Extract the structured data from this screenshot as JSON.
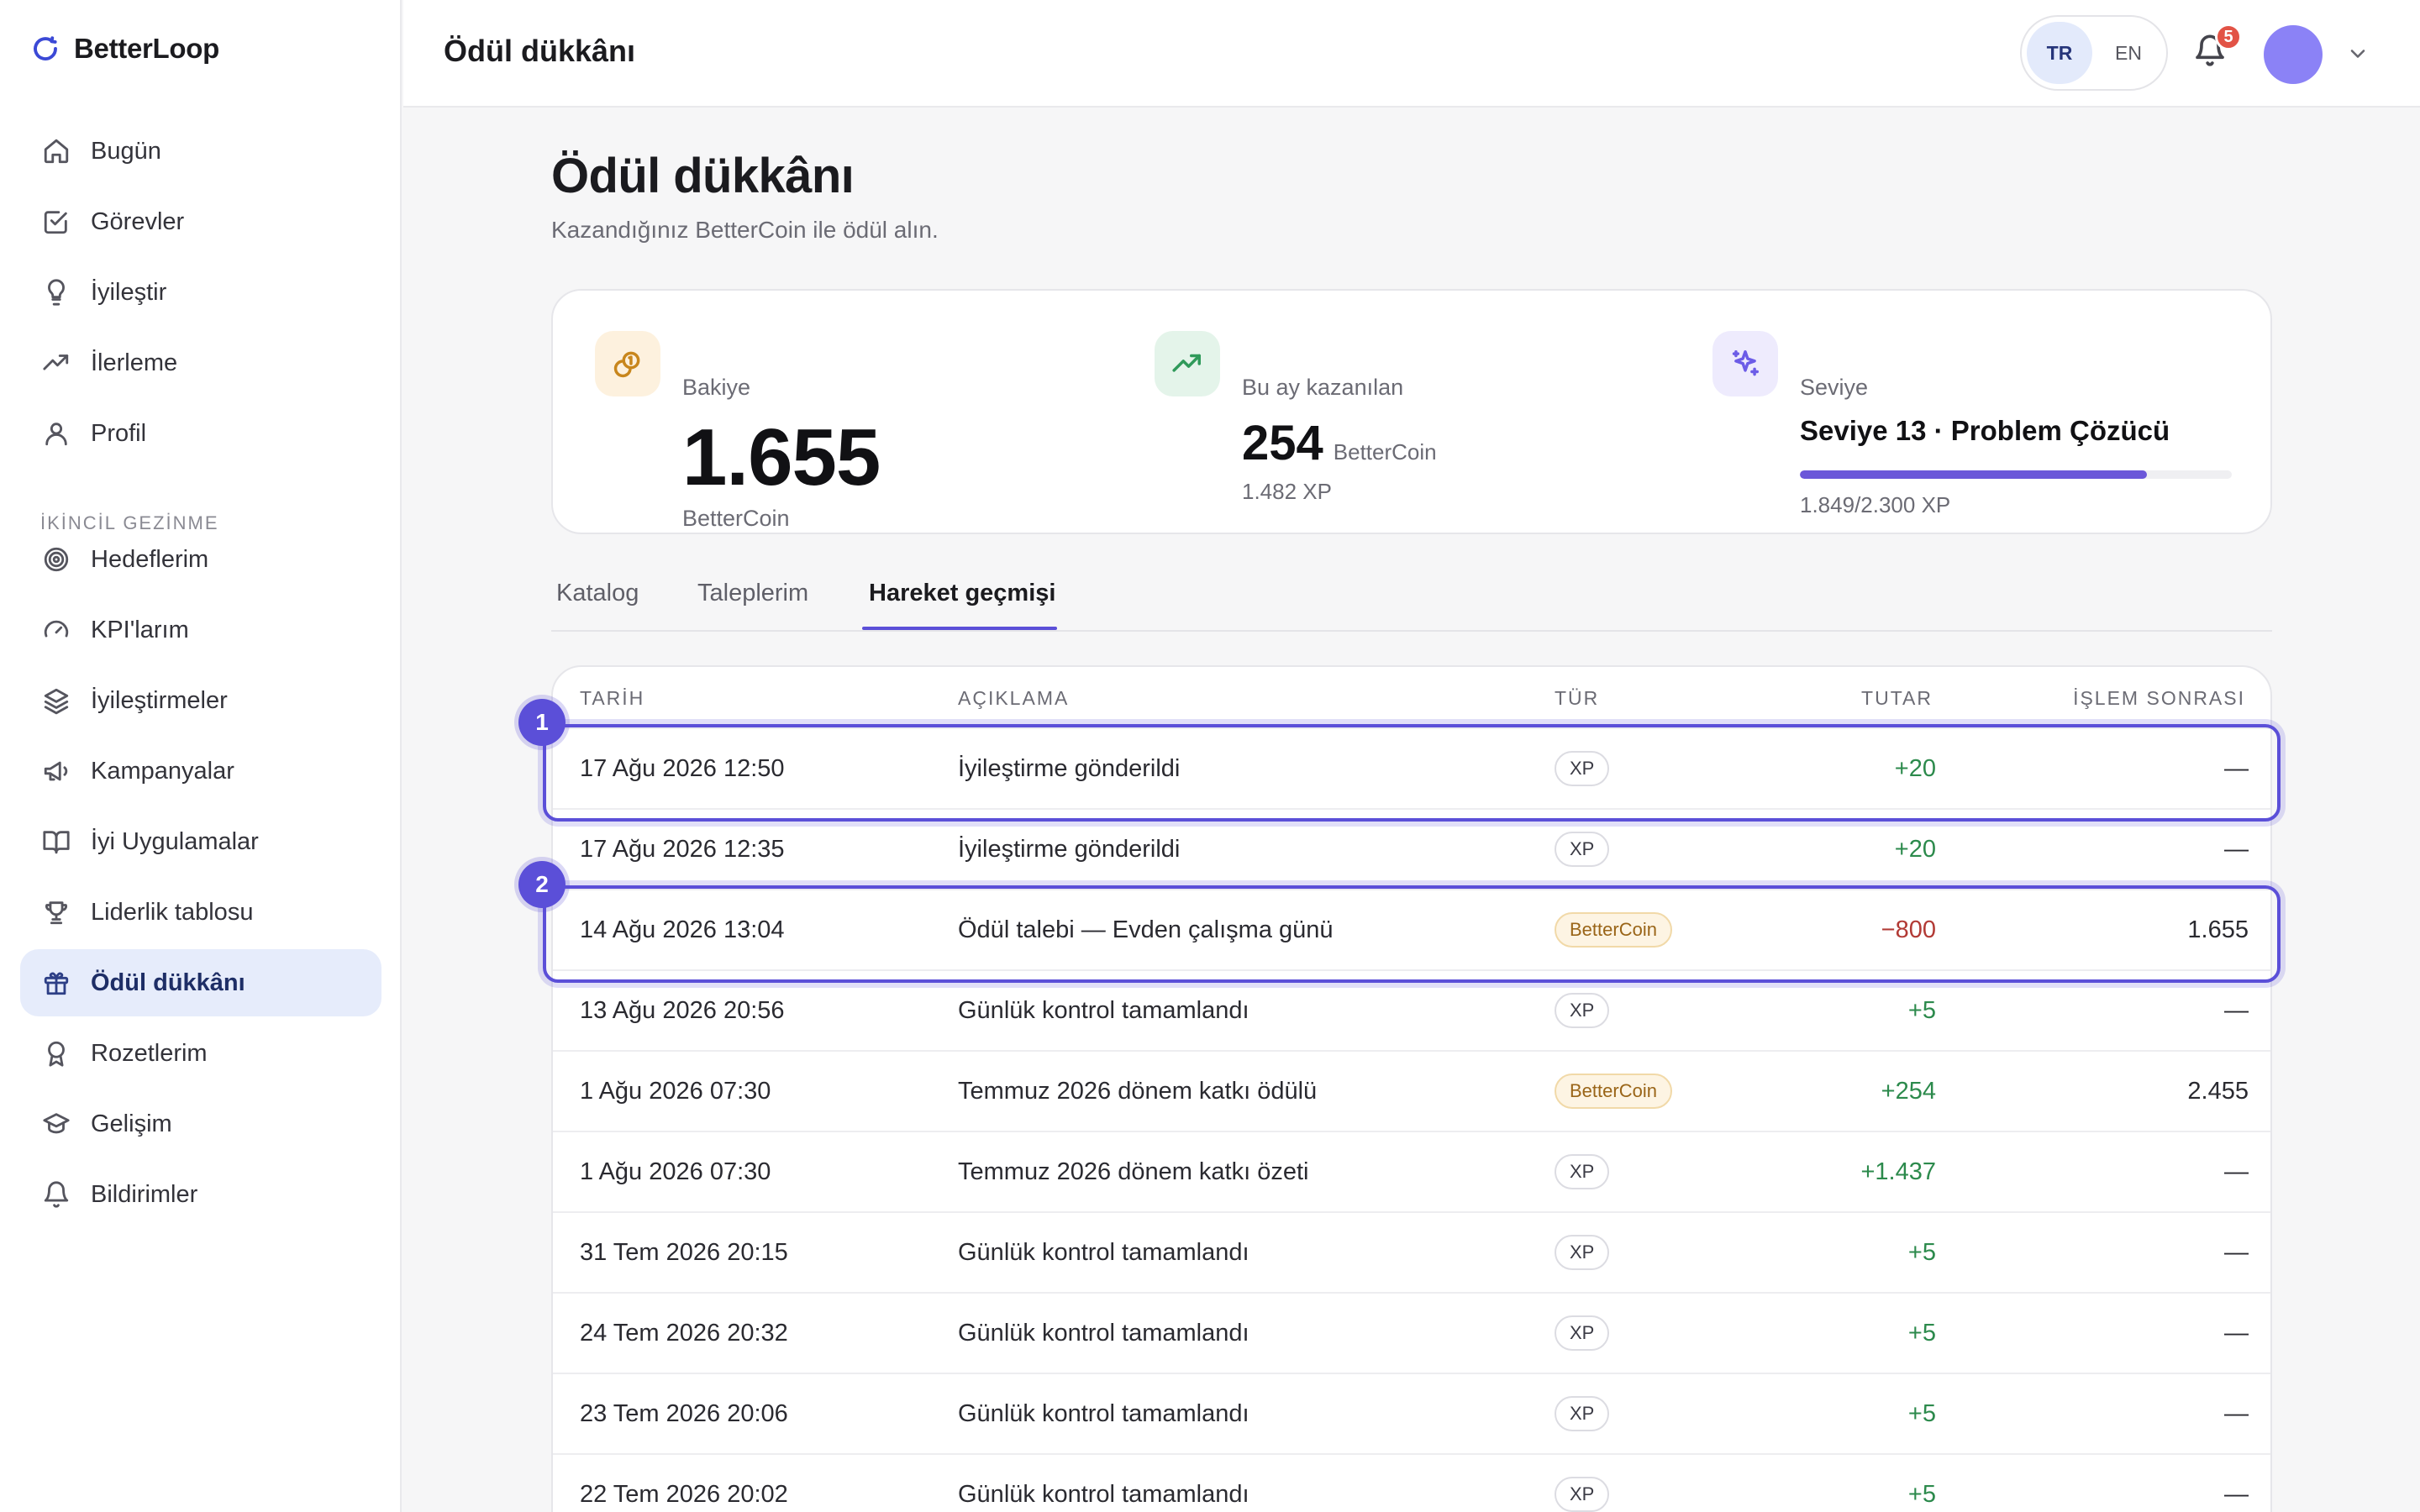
{
  "brand": {
    "name": "BetterLoop"
  },
  "sidebar": {
    "primary": [
      {
        "label": "Bugün",
        "icon": "home-icon"
      },
      {
        "label": "Görevler",
        "icon": "check-square-icon"
      },
      {
        "label": "İyileştir",
        "icon": "lightbulb-icon"
      },
      {
        "label": "İlerleme",
        "icon": "trend-up-icon"
      },
      {
        "label": "Profil",
        "icon": "user-icon"
      }
    ],
    "section_title": "İKİNCİL GEZİNME",
    "secondary": [
      {
        "label": "Hedeflerim",
        "icon": "target-icon"
      },
      {
        "label": "KPI'larım",
        "icon": "gauge-icon"
      },
      {
        "label": "İyileştirmeler",
        "icon": "layers-icon"
      },
      {
        "label": "Kampanyalar",
        "icon": "megaphone-icon"
      },
      {
        "label": "İyi Uygulamalar",
        "icon": "book-icon"
      },
      {
        "label": "Liderlik tablosu",
        "icon": "trophy-icon"
      },
      {
        "label": "Ödül dükkânı",
        "icon": "gift-icon",
        "active": true
      },
      {
        "label": "Rozetlerim",
        "icon": "award-icon"
      },
      {
        "label": "Gelişim",
        "icon": "graduation-cap-icon"
      },
      {
        "label": "Bildirimler",
        "icon": "bell-icon"
      }
    ]
  },
  "header": {
    "title": "Ödül dükkânı",
    "lang_options": [
      "TR",
      "EN"
    ],
    "lang_selected": "TR",
    "notification_count": "5",
    "avatar_color": "#8b82f6"
  },
  "main": {
    "title": "Ödül dükkânı",
    "subtitle": "Kazandığınız BetterCoin ile ödül alın."
  },
  "stats": {
    "balance": {
      "label": "Bakiye",
      "value": "1.655",
      "unit": "BetterCoin"
    },
    "this_month": {
      "label": "Bu ay kazanılan",
      "value": "254",
      "unit": "BetterCoin",
      "xp": "1.482 XP"
    },
    "level": {
      "label": "Seviye",
      "name": "Seviye 13 · Problem Çözücü",
      "progress_text": "1.849/2.300 XP",
      "progress_fraction": 0.804
    }
  },
  "tabs": [
    {
      "label": "Katalog"
    },
    {
      "label": "Taleplerim"
    },
    {
      "label": "Hareket geçmişi",
      "active": true
    }
  ],
  "table": {
    "columns": [
      "TARİH",
      "AÇIKLAMA",
      "TÜR",
      "TUTAR",
      "İŞLEM SONRASI"
    ],
    "rows": [
      {
        "date": "17 Ağu 2026 12:50",
        "desc": "İyileştirme gönderildi",
        "type": "XP",
        "amount": "+20",
        "after": "—"
      },
      {
        "date": "17 Ağu 2026 12:35",
        "desc": "İyileştirme gönderildi",
        "type": "XP",
        "amount": "+20",
        "after": "—"
      },
      {
        "date": "14 Ağu 2026 13:04",
        "desc": "Ödül talebi — Evden çalışma günü",
        "type": "BetterCoin",
        "amount": "−800",
        "after": "1.655"
      },
      {
        "date": "13 Ağu 2026 20:56",
        "desc": "Günlük kontrol tamamlandı",
        "type": "XP",
        "amount": "+5",
        "after": "—"
      },
      {
        "date": "1 Ağu 2026 07:30",
        "desc": "Temmuz 2026 dönem katkı ödülü",
        "type": "BetterCoin",
        "amount": "+254",
        "after": "2.455"
      },
      {
        "date": "1 Ağu 2026 07:30",
        "desc": "Temmuz 2026 dönem katkı özeti",
        "type": "XP",
        "amount": "+1.437",
        "after": "—"
      },
      {
        "date": "31 Tem 2026 20:15",
        "desc": "Günlük kontrol tamamlandı",
        "type": "XP",
        "amount": "+5",
        "after": "—"
      },
      {
        "date": "24 Tem 2026 20:32",
        "desc": "Günlük kontrol tamamlandı",
        "type": "XP",
        "amount": "+5",
        "after": "—"
      },
      {
        "date": "23 Tem 2026 20:06",
        "desc": "Günlük kontrol tamamlandı",
        "type": "XP",
        "amount": "+5",
        "after": "—"
      },
      {
        "date": "22 Tem 2026 20:02",
        "desc": "Günlük kontrol tamamlandı",
        "type": "XP",
        "amount": "+5",
        "after": "—"
      }
    ]
  },
  "highlights": [
    {
      "number": "1",
      "row": 0
    },
    {
      "number": "2",
      "row": 2
    }
  ],
  "colors": {
    "accent": "#5b4fd8",
    "positive": "#2c8a4c",
    "negative": "#b23a35",
    "active_nav_bg": "#e6ecfb"
  }
}
